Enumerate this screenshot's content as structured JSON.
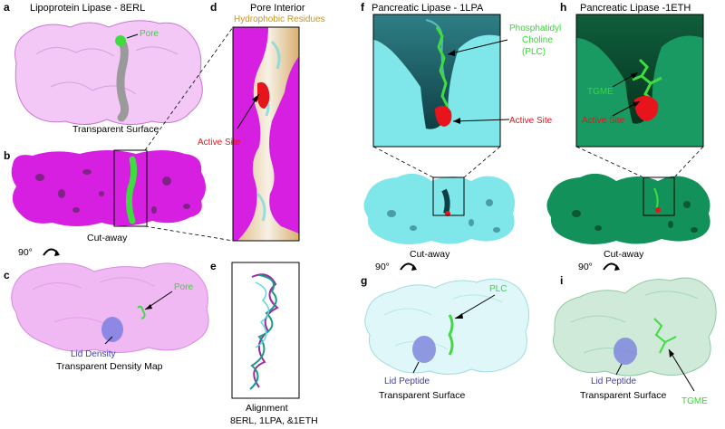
{
  "panels": {
    "a": {
      "letter": "a",
      "title": "Lipoprotein Lipase - 8ERL",
      "caption": "Transparent Surface",
      "pore": "Pore"
    },
    "b": {
      "letter": "b",
      "caption": "Cut-away",
      "rotation": "90°"
    },
    "c": {
      "letter": "c",
      "caption": "Transparent Density Map",
      "pore": "Pore",
      "lid": "Lid Density"
    },
    "d": {
      "letter": "d",
      "title": "Pore Interior",
      "subtitle": "Hydrophobic Residues",
      "active_site": "Active Site"
    },
    "e": {
      "letter": "e",
      "caption_line1": "Alignment",
      "caption_line2": "8ERL, 1LPA, &1ETH"
    },
    "f": {
      "letter": "f",
      "title": "Pancreatic Lipase - 1LPA",
      "ligand_line1": "Phosphatidyl",
      "ligand_line2": "Choline",
      "ligand_line3": "(PLC)",
      "active_site": "Active Site",
      "caption": "Cut-away",
      "rotation": "90°"
    },
    "g": {
      "letter": "g",
      "ligand": "PLC",
      "lid": "Lid Peptide",
      "caption": "Transparent Surface"
    },
    "h": {
      "letter": "h",
      "title": "Pancreatic Lipase -1ETH",
      "ligand": "TGME",
      "active_site": "Active Site",
      "caption": "Cut-away",
      "rotation": "90°"
    },
    "i": {
      "letter": "i",
      "ligand": "TGME",
      "lid": "Lid Peptide",
      "caption": "Transparent Surface"
    }
  },
  "colors": {
    "lpl": "#d61fe0",
    "lpl_light": "#f3c6f6",
    "cyan": "#7fe7ea",
    "cyan_light": "#dff7f8",
    "green_dark": "#148a5a",
    "green_light": "#cfead9",
    "ligand": "#3fdc3f",
    "active": "#e8141c",
    "lid": "#6b6fd1",
    "hydrophobic": "#d6a85a"
  }
}
